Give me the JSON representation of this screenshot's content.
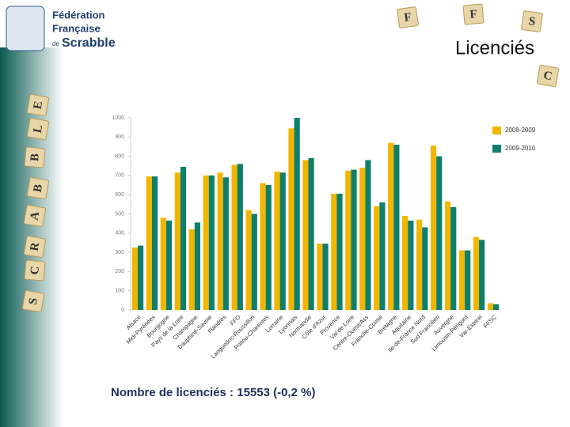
{
  "logo": {
    "line1": "Fédération",
    "line2": "Française",
    "line3": "de",
    "line4": "Scrabble"
  },
  "title": "Licenciés",
  "tiles": [
    "F",
    "F",
    "S",
    "C",
    "E",
    "L",
    "B",
    "B",
    "A",
    "R",
    "C",
    "S"
  ],
  "footer": "Nombre de licenciés : 15553 (-0,2 %)",
  "chart_data": {
    "type": "bar",
    "categories": [
      "Alsace",
      "Midi-Pyrénées",
      "Bourgogne",
      "Pays de la Loire",
      "Champagne",
      "Dauphiné-Savoie",
      "Flandres",
      "FFO",
      "Languedoc-Roussillon",
      "Poitou-Charentes",
      "Lorraine",
      "Lyonnais",
      "Normandie",
      "Côte d'Azur",
      "Provence",
      "Val de Loire",
      "Centre-Ouest/Ass",
      "Franche-Comté",
      "Bretagne",
      "Aquitaine",
      "Ile-de-France Nord",
      "Sud Francilien",
      "Auvergne",
      "Limousin-Périgord",
      "Var-Esterel",
      "FFSC"
    ],
    "series": [
      {
        "name": "2008-2009",
        "color": "#f2b600",
        "values": [
          325,
          695,
          480,
          715,
          420,
          700,
          715,
          755,
          520,
          660,
          720,
          945,
          780,
          345,
          605,
          725,
          740,
          540,
          870,
          490,
          470,
          855,
          565,
          310,
          380,
          35
        ]
      },
      {
        "name": "2009-2010",
        "color": "#0e7f6a",
        "values": [
          335,
          695,
          465,
          745,
          455,
          700,
          690,
          760,
          500,
          650,
          715,
          1000,
          790,
          345,
          605,
          730,
          780,
          560,
          860,
          465,
          430,
          800,
          535,
          310,
          365,
          30
        ]
      }
    ],
    "ylim": [
      0,
      1000
    ],
    "yticks": [
      0,
      100,
      200,
      300,
      400,
      500,
      600,
      700,
      800,
      900,
      1000
    ],
    "grid": false,
    "legend": "top-right"
  }
}
